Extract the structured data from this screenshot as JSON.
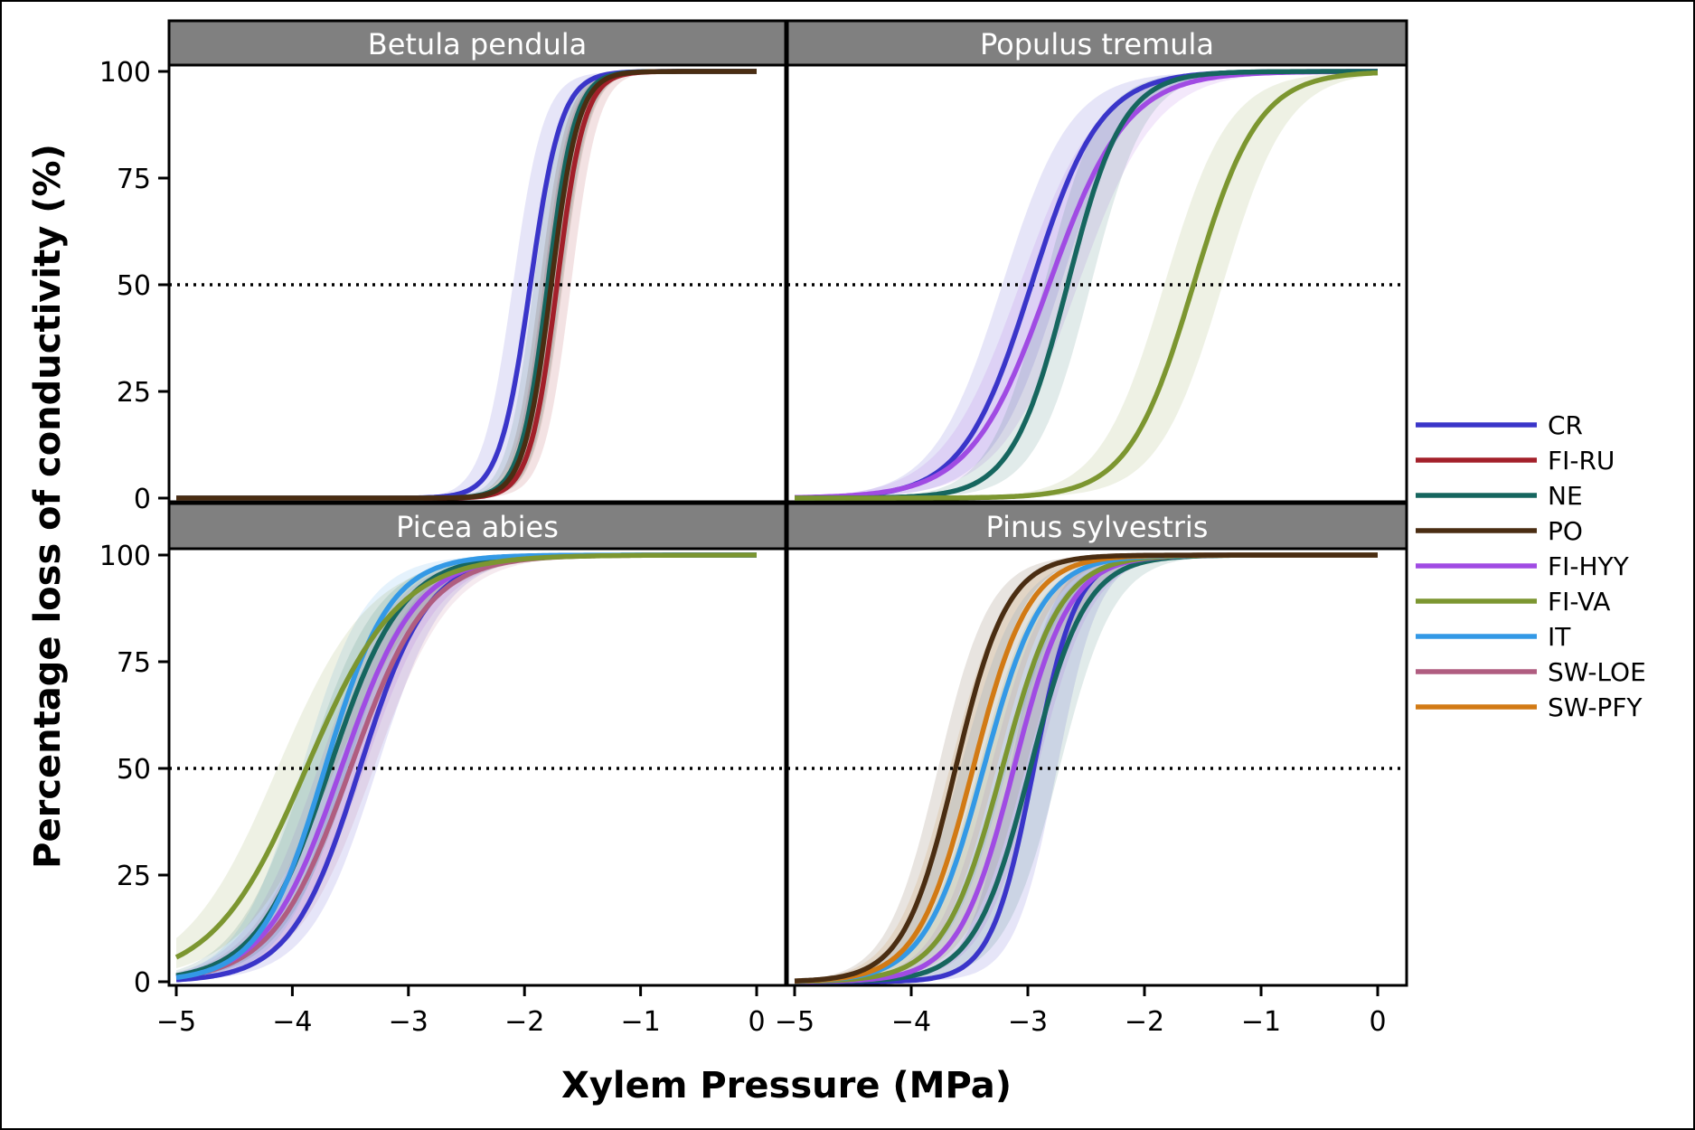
{
  "chart_data": {
    "type": "line",
    "xlabel": "Xylem Pressure (MPa)",
    "ylabel": "Percentage loss of conductivity (%)",
    "xlim": [
      -5,
      0
    ],
    "ylim": [
      0,
      100
    ],
    "x_ticks": [
      "−5",
      "−4",
      "−3",
      "−2",
      "−1",
      "0"
    ],
    "y_ticks": [
      "0",
      "25",
      "50",
      "75",
      "100"
    ],
    "reference_line": {
      "y": 50,
      "style": "dotted"
    },
    "legend": {
      "position": "right",
      "items": [
        {
          "label": "CR",
          "color": "#3a35c9"
        },
        {
          "label": "FI-RU",
          "color": "#a3202a"
        },
        {
          "label": "NE",
          "color": "#16665f"
        },
        {
          "label": "PO",
          "color": "#4a2d12"
        },
        {
          "label": "FI-HYY",
          "color": "#a04be3"
        },
        {
          "label": "FI-VA",
          "color": "#7c9630"
        },
        {
          "label": "IT",
          "color": "#3399e6"
        },
        {
          "label": "SW-LOE",
          "color": "#b05d80"
        },
        {
          "label": "SW-PFY",
          "color": "#d27a14"
        }
      ]
    },
    "panels": [
      {
        "title": "Betula pendula",
        "series": [
          {
            "name": "CR",
            "p50": -1.95,
            "steepness": 7.5,
            "band_width": 0.15
          },
          {
            "name": "FI-RU",
            "p50": -1.72,
            "steepness": 8.5,
            "band_width": 0.12
          },
          {
            "name": "NE",
            "p50": -1.8,
            "steepness": 8.5,
            "band_width": 0.12
          },
          {
            "name": "PO",
            "p50": -1.77,
            "steepness": 8.5,
            "band_width": 0.1
          }
        ]
      },
      {
        "title": "Populus tremula",
        "series": [
          {
            "name": "CR",
            "p50": -2.97,
            "steepness": 3.4,
            "band_width": 0.25
          },
          {
            "name": "FI-HYY",
            "p50": -2.82,
            "steepness": 3.0,
            "band_width": 0.25
          },
          {
            "name": "NE",
            "p50": -2.66,
            "steepness": 4.2,
            "band_width": 0.2
          },
          {
            "name": "FI-VA",
            "p50": -1.58,
            "steepness": 3.6,
            "band_width": 0.25
          }
        ]
      },
      {
        "title": "Picea abies",
        "series": [
          {
            "name": "CR",
            "p50": -3.42,
            "steepness": 3.4,
            "band_width": 0.15
          },
          {
            "name": "SW-LOE",
            "p50": -3.5,
            "steepness": 3.0,
            "band_width": 0.2
          },
          {
            "name": "FI-HYY",
            "p50": -3.58,
            "steepness": 3.1,
            "band_width": 0.2
          },
          {
            "name": "NE",
            "p50": -3.68,
            "steepness": 3.2,
            "band_width": 0.2
          },
          {
            "name": "IT",
            "p50": -3.72,
            "steepness": 3.6,
            "band_width": 0.2
          },
          {
            "name": "FI-VA",
            "p50": -3.88,
            "steepness": 2.5,
            "band_width": 0.25
          }
        ]
      },
      {
        "title": "Pinus sylvestris",
        "series": [
          {
            "name": "CR",
            "p50": -2.95,
            "steepness": 5.5,
            "band_width": 0.2
          },
          {
            "name": "NE",
            "p50": -2.98,
            "steepness": 4.2,
            "band_width": 0.25
          },
          {
            "name": "FI-HYY",
            "p50": -3.12,
            "steepness": 4.2,
            "band_width": 0.2
          },
          {
            "name": "FI-VA",
            "p50": -3.22,
            "steepness": 4.0,
            "band_width": 0.2
          },
          {
            "name": "IT",
            "p50": -3.38,
            "steepness": 4.0,
            "band_width": 0.2
          },
          {
            "name": "SW-PFY",
            "p50": -3.47,
            "steepness": 4.2,
            "band_width": 0.2
          },
          {
            "name": "PO",
            "p50": -3.62,
            "steepness": 4.5,
            "band_width": 0.15
          }
        ]
      }
    ]
  }
}
